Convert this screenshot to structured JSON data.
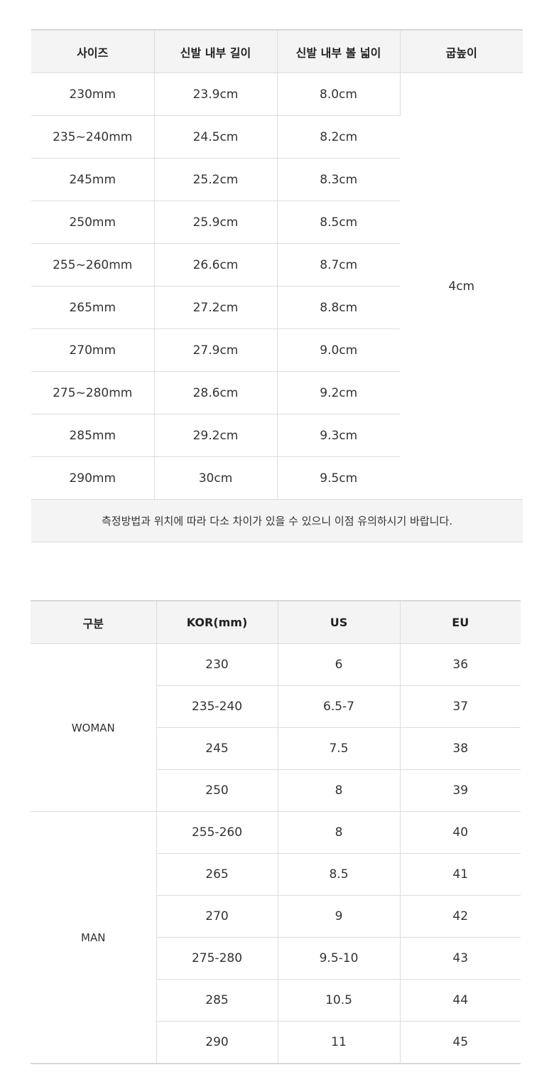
{
  "size_table": {
    "headers": [
      "사이즈",
      "신발 내부 길이",
      "신발 내부 볼 넓이",
      "굽높이"
    ],
    "rows": [
      [
        "230mm",
        "23.9cm",
        "8.0cm"
      ],
      [
        "235~240mm",
        "24.5cm",
        "8.2cm"
      ],
      [
        "245mm",
        "25.2cm",
        "8.3cm"
      ],
      [
        "250mm",
        "25.9cm",
        "8.5cm"
      ],
      [
        "255~260mm",
        "26.6cm",
        "8.7cm"
      ],
      [
        "265mm",
        "27.2cm",
        "8.8cm"
      ],
      [
        "270mm",
        "27.9cm",
        "9.0cm"
      ],
      [
        "275~280mm",
        "28.6cm",
        "9.2cm"
      ],
      [
        "285mm",
        "29.2cm",
        "9.3cm"
      ],
      [
        "290mm",
        "30cm",
        "9.5cm"
      ]
    ],
    "heel_height": "4cm",
    "note": "측정방법과 위치에 따라 다소 차이가 있을 수 있으니 이점 유의하시기 바랍니다."
  },
  "conversion_table": {
    "headers": [
      "구분",
      "KOR(mm)",
      "US",
      "EU"
    ],
    "groups": [
      {
        "label": "WOMAN",
        "rows": [
          [
            "230",
            "6",
            "36"
          ],
          [
            "235-240",
            "6.5-7",
            "37"
          ],
          [
            "245",
            "7.5",
            "38"
          ],
          [
            "250",
            "8",
            "39"
          ]
        ]
      },
      {
        "label": "MAN",
        "rows": [
          [
            "255-260",
            "8",
            "40"
          ],
          [
            "265",
            "8.5",
            "41"
          ],
          [
            "270",
            "9",
            "42"
          ],
          [
            "275-280",
            "9.5-10",
            "43"
          ],
          [
            "285",
            "10.5",
            "44"
          ],
          [
            "290",
            "11",
            "45"
          ]
        ]
      }
    ]
  }
}
